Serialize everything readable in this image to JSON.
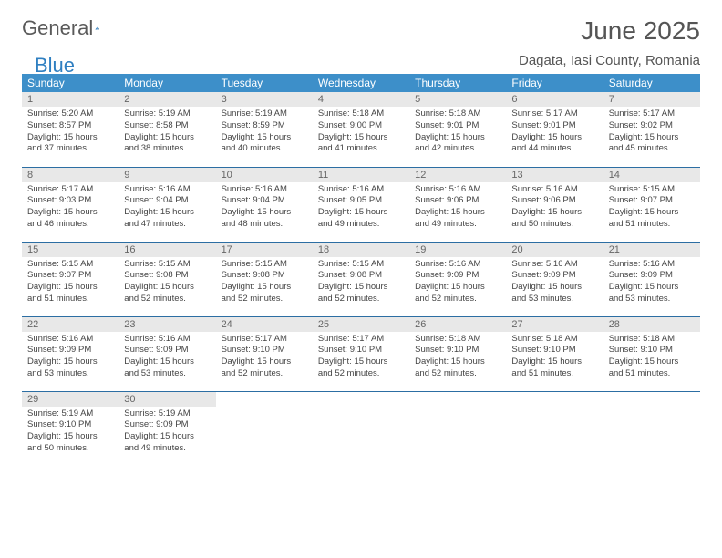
{
  "logo": {
    "gray": "General",
    "blue": "Blue"
  },
  "title": "June 2025",
  "location": "Dagata, Iasi County, Romania",
  "headers": [
    "Sunday",
    "Monday",
    "Tuesday",
    "Wednesday",
    "Thursday",
    "Friday",
    "Saturday"
  ],
  "colors": {
    "header_bg": "#3d8fc9",
    "header_text": "#ffffff",
    "daynum_bg": "#e8e8e8",
    "border": "#2c6ea3",
    "logo_blue": "#2f7fc1"
  },
  "weeks": [
    [
      {
        "n": "1",
        "sr": "5:20 AM",
        "ss": "8:57 PM",
        "dl": "15 hours and 37 minutes."
      },
      {
        "n": "2",
        "sr": "5:19 AM",
        "ss": "8:58 PM",
        "dl": "15 hours and 38 minutes."
      },
      {
        "n": "3",
        "sr": "5:19 AM",
        "ss": "8:59 PM",
        "dl": "15 hours and 40 minutes."
      },
      {
        "n": "4",
        "sr": "5:18 AM",
        "ss": "9:00 PM",
        "dl": "15 hours and 41 minutes."
      },
      {
        "n": "5",
        "sr": "5:18 AM",
        "ss": "9:01 PM",
        "dl": "15 hours and 42 minutes."
      },
      {
        "n": "6",
        "sr": "5:17 AM",
        "ss": "9:01 PM",
        "dl": "15 hours and 44 minutes."
      },
      {
        "n": "7",
        "sr": "5:17 AM",
        "ss": "9:02 PM",
        "dl": "15 hours and 45 minutes."
      }
    ],
    [
      {
        "n": "8",
        "sr": "5:17 AM",
        "ss": "9:03 PM",
        "dl": "15 hours and 46 minutes."
      },
      {
        "n": "9",
        "sr": "5:16 AM",
        "ss": "9:04 PM",
        "dl": "15 hours and 47 minutes."
      },
      {
        "n": "10",
        "sr": "5:16 AM",
        "ss": "9:04 PM",
        "dl": "15 hours and 48 minutes."
      },
      {
        "n": "11",
        "sr": "5:16 AM",
        "ss": "9:05 PM",
        "dl": "15 hours and 49 minutes."
      },
      {
        "n": "12",
        "sr": "5:16 AM",
        "ss": "9:06 PM",
        "dl": "15 hours and 49 minutes."
      },
      {
        "n": "13",
        "sr": "5:16 AM",
        "ss": "9:06 PM",
        "dl": "15 hours and 50 minutes."
      },
      {
        "n": "14",
        "sr": "5:15 AM",
        "ss": "9:07 PM",
        "dl": "15 hours and 51 minutes."
      }
    ],
    [
      {
        "n": "15",
        "sr": "5:15 AM",
        "ss": "9:07 PM",
        "dl": "15 hours and 51 minutes."
      },
      {
        "n": "16",
        "sr": "5:15 AM",
        "ss": "9:08 PM",
        "dl": "15 hours and 52 minutes."
      },
      {
        "n": "17",
        "sr": "5:15 AM",
        "ss": "9:08 PM",
        "dl": "15 hours and 52 minutes."
      },
      {
        "n": "18",
        "sr": "5:15 AM",
        "ss": "9:08 PM",
        "dl": "15 hours and 52 minutes."
      },
      {
        "n": "19",
        "sr": "5:16 AM",
        "ss": "9:09 PM",
        "dl": "15 hours and 52 minutes."
      },
      {
        "n": "20",
        "sr": "5:16 AM",
        "ss": "9:09 PM",
        "dl": "15 hours and 53 minutes."
      },
      {
        "n": "21",
        "sr": "5:16 AM",
        "ss": "9:09 PM",
        "dl": "15 hours and 53 minutes."
      }
    ],
    [
      {
        "n": "22",
        "sr": "5:16 AM",
        "ss": "9:09 PM",
        "dl": "15 hours and 53 minutes."
      },
      {
        "n": "23",
        "sr": "5:16 AM",
        "ss": "9:09 PM",
        "dl": "15 hours and 53 minutes."
      },
      {
        "n": "24",
        "sr": "5:17 AM",
        "ss": "9:10 PM",
        "dl": "15 hours and 52 minutes."
      },
      {
        "n": "25",
        "sr": "5:17 AM",
        "ss": "9:10 PM",
        "dl": "15 hours and 52 minutes."
      },
      {
        "n": "26",
        "sr": "5:18 AM",
        "ss": "9:10 PM",
        "dl": "15 hours and 52 minutes."
      },
      {
        "n": "27",
        "sr": "5:18 AM",
        "ss": "9:10 PM",
        "dl": "15 hours and 51 minutes."
      },
      {
        "n": "28",
        "sr": "5:18 AM",
        "ss": "9:10 PM",
        "dl": "15 hours and 51 minutes."
      }
    ],
    [
      {
        "n": "29",
        "sr": "5:19 AM",
        "ss": "9:10 PM",
        "dl": "15 hours and 50 minutes."
      },
      {
        "n": "30",
        "sr": "5:19 AM",
        "ss": "9:09 PM",
        "dl": "15 hours and 49 minutes."
      },
      null,
      null,
      null,
      null,
      null
    ]
  ],
  "labels": {
    "sunrise": "Sunrise:",
    "sunset": "Sunset:",
    "daylight": "Daylight:"
  }
}
